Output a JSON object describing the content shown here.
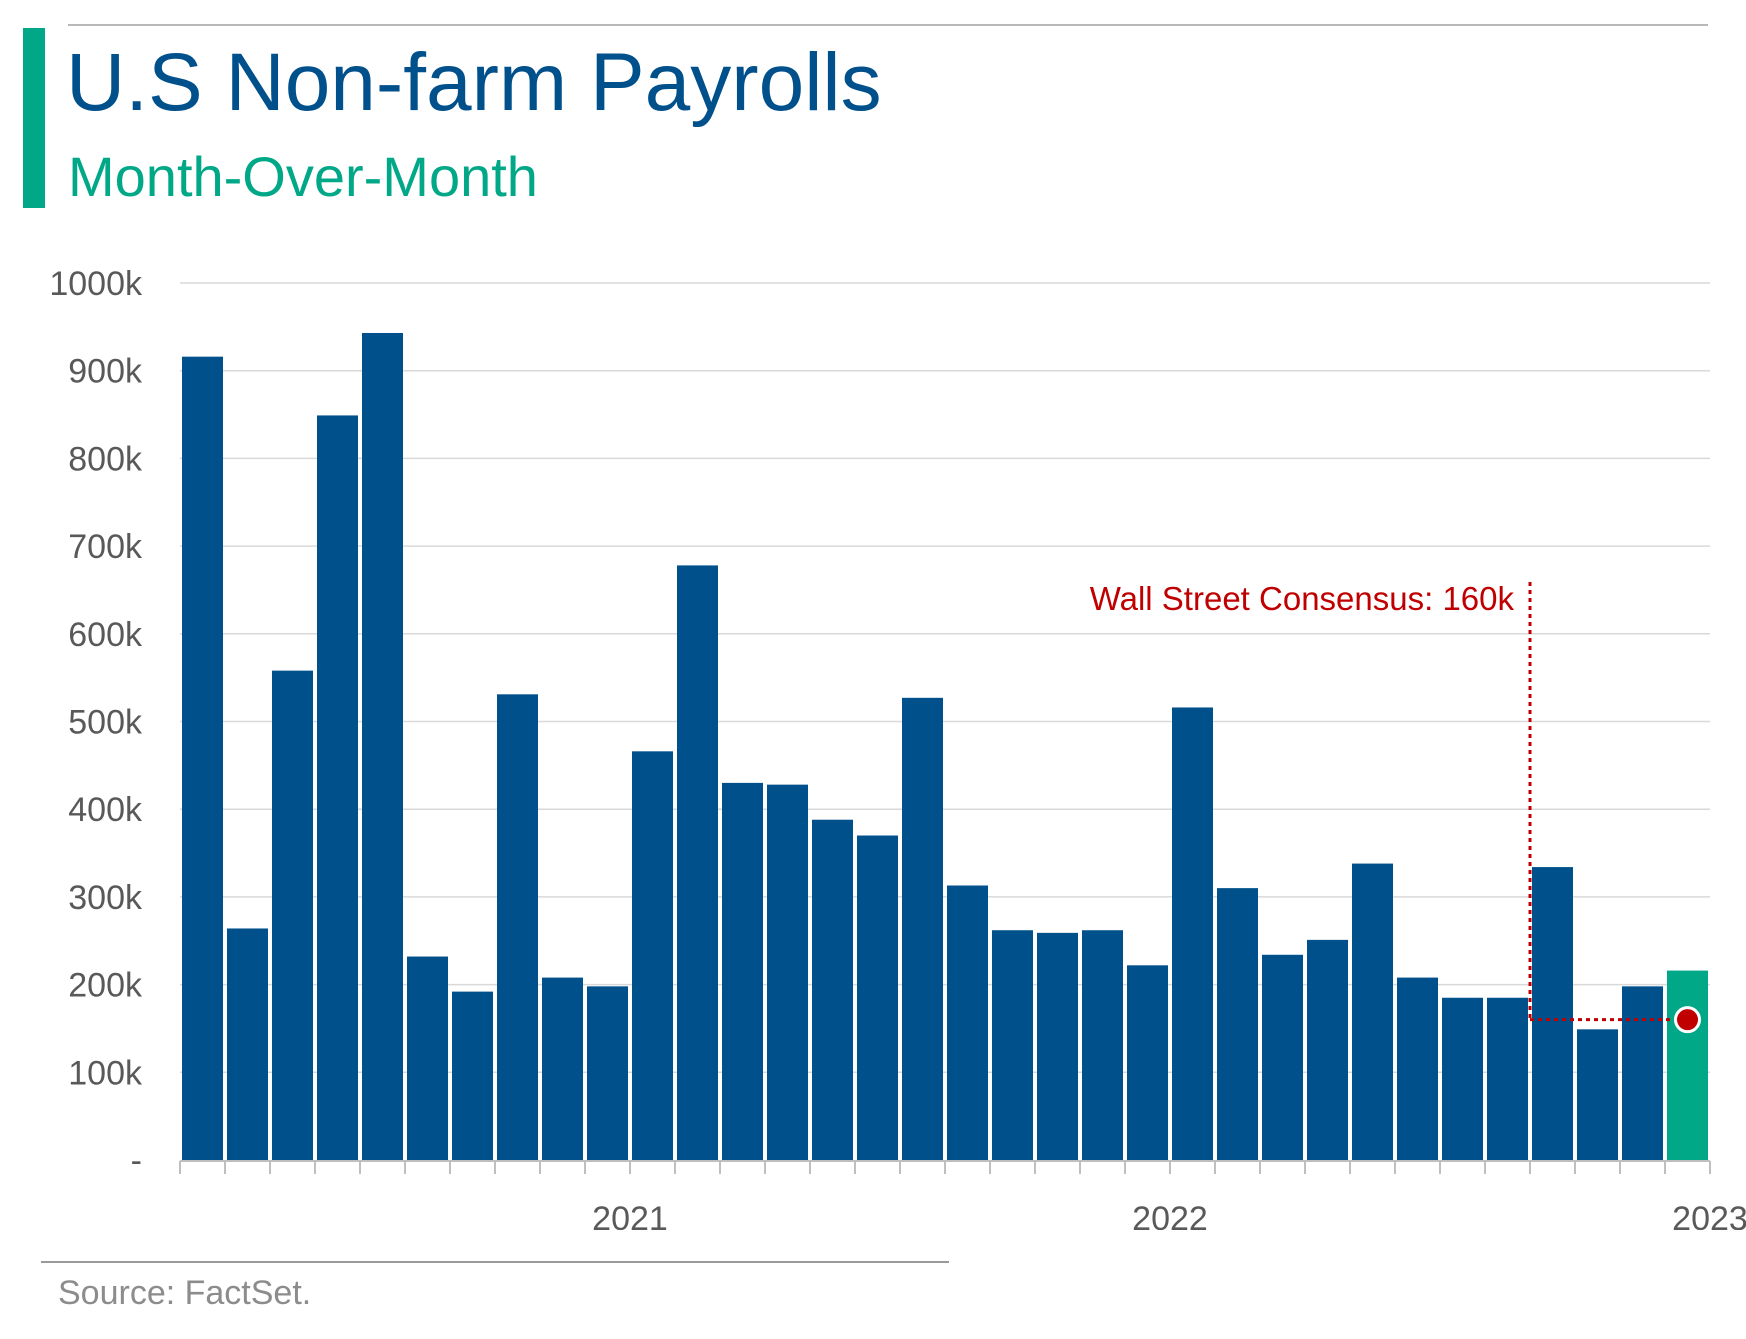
{
  "header": {
    "title": "U.S Non-farm Payrolls",
    "subtitle": "Month-Over-Month"
  },
  "footer": {
    "source": "Source: FactSet."
  },
  "colors": {
    "bar": "#00508c",
    "highlight_bar": "#00a887",
    "title": "#00508c",
    "subtitle": "#00a887",
    "consensus": "#c00000",
    "grid": "#d9d9d9",
    "tick_text": "#595959"
  },
  "chart_data": {
    "type": "bar",
    "title": "U.S Non-farm Payrolls",
    "subtitle": "Month-Over-Month",
    "ylim": [
      0,
      1000
    ],
    "y_ticks": [
      "-",
      "100k",
      "200k",
      "300k",
      "400k",
      "500k",
      "600k",
      "700k",
      "800k",
      "900k",
      "1000k"
    ],
    "x_tick_labels": [
      {
        "label": "2021",
        "index": 10
      },
      {
        "label": "2022",
        "index": 22
      },
      {
        "label": "2023",
        "index": 34
      }
    ],
    "grid": true,
    "values": [
      916,
      264,
      558,
      849,
      943,
      232,
      192,
      531,
      208,
      198,
      466,
      678,
      430,
      428,
      388,
      370,
      527,
      313,
      262,
      259,
      262,
      222,
      516,
      310,
      234,
      251,
      338,
      208,
      185,
      185,
      334,
      149,
      198,
      216
    ],
    "highlight_index": 33,
    "annotation": {
      "text": "Wall Street Consensus: 160k",
      "value": 160,
      "from_index": 30,
      "to_index": 33
    }
  }
}
